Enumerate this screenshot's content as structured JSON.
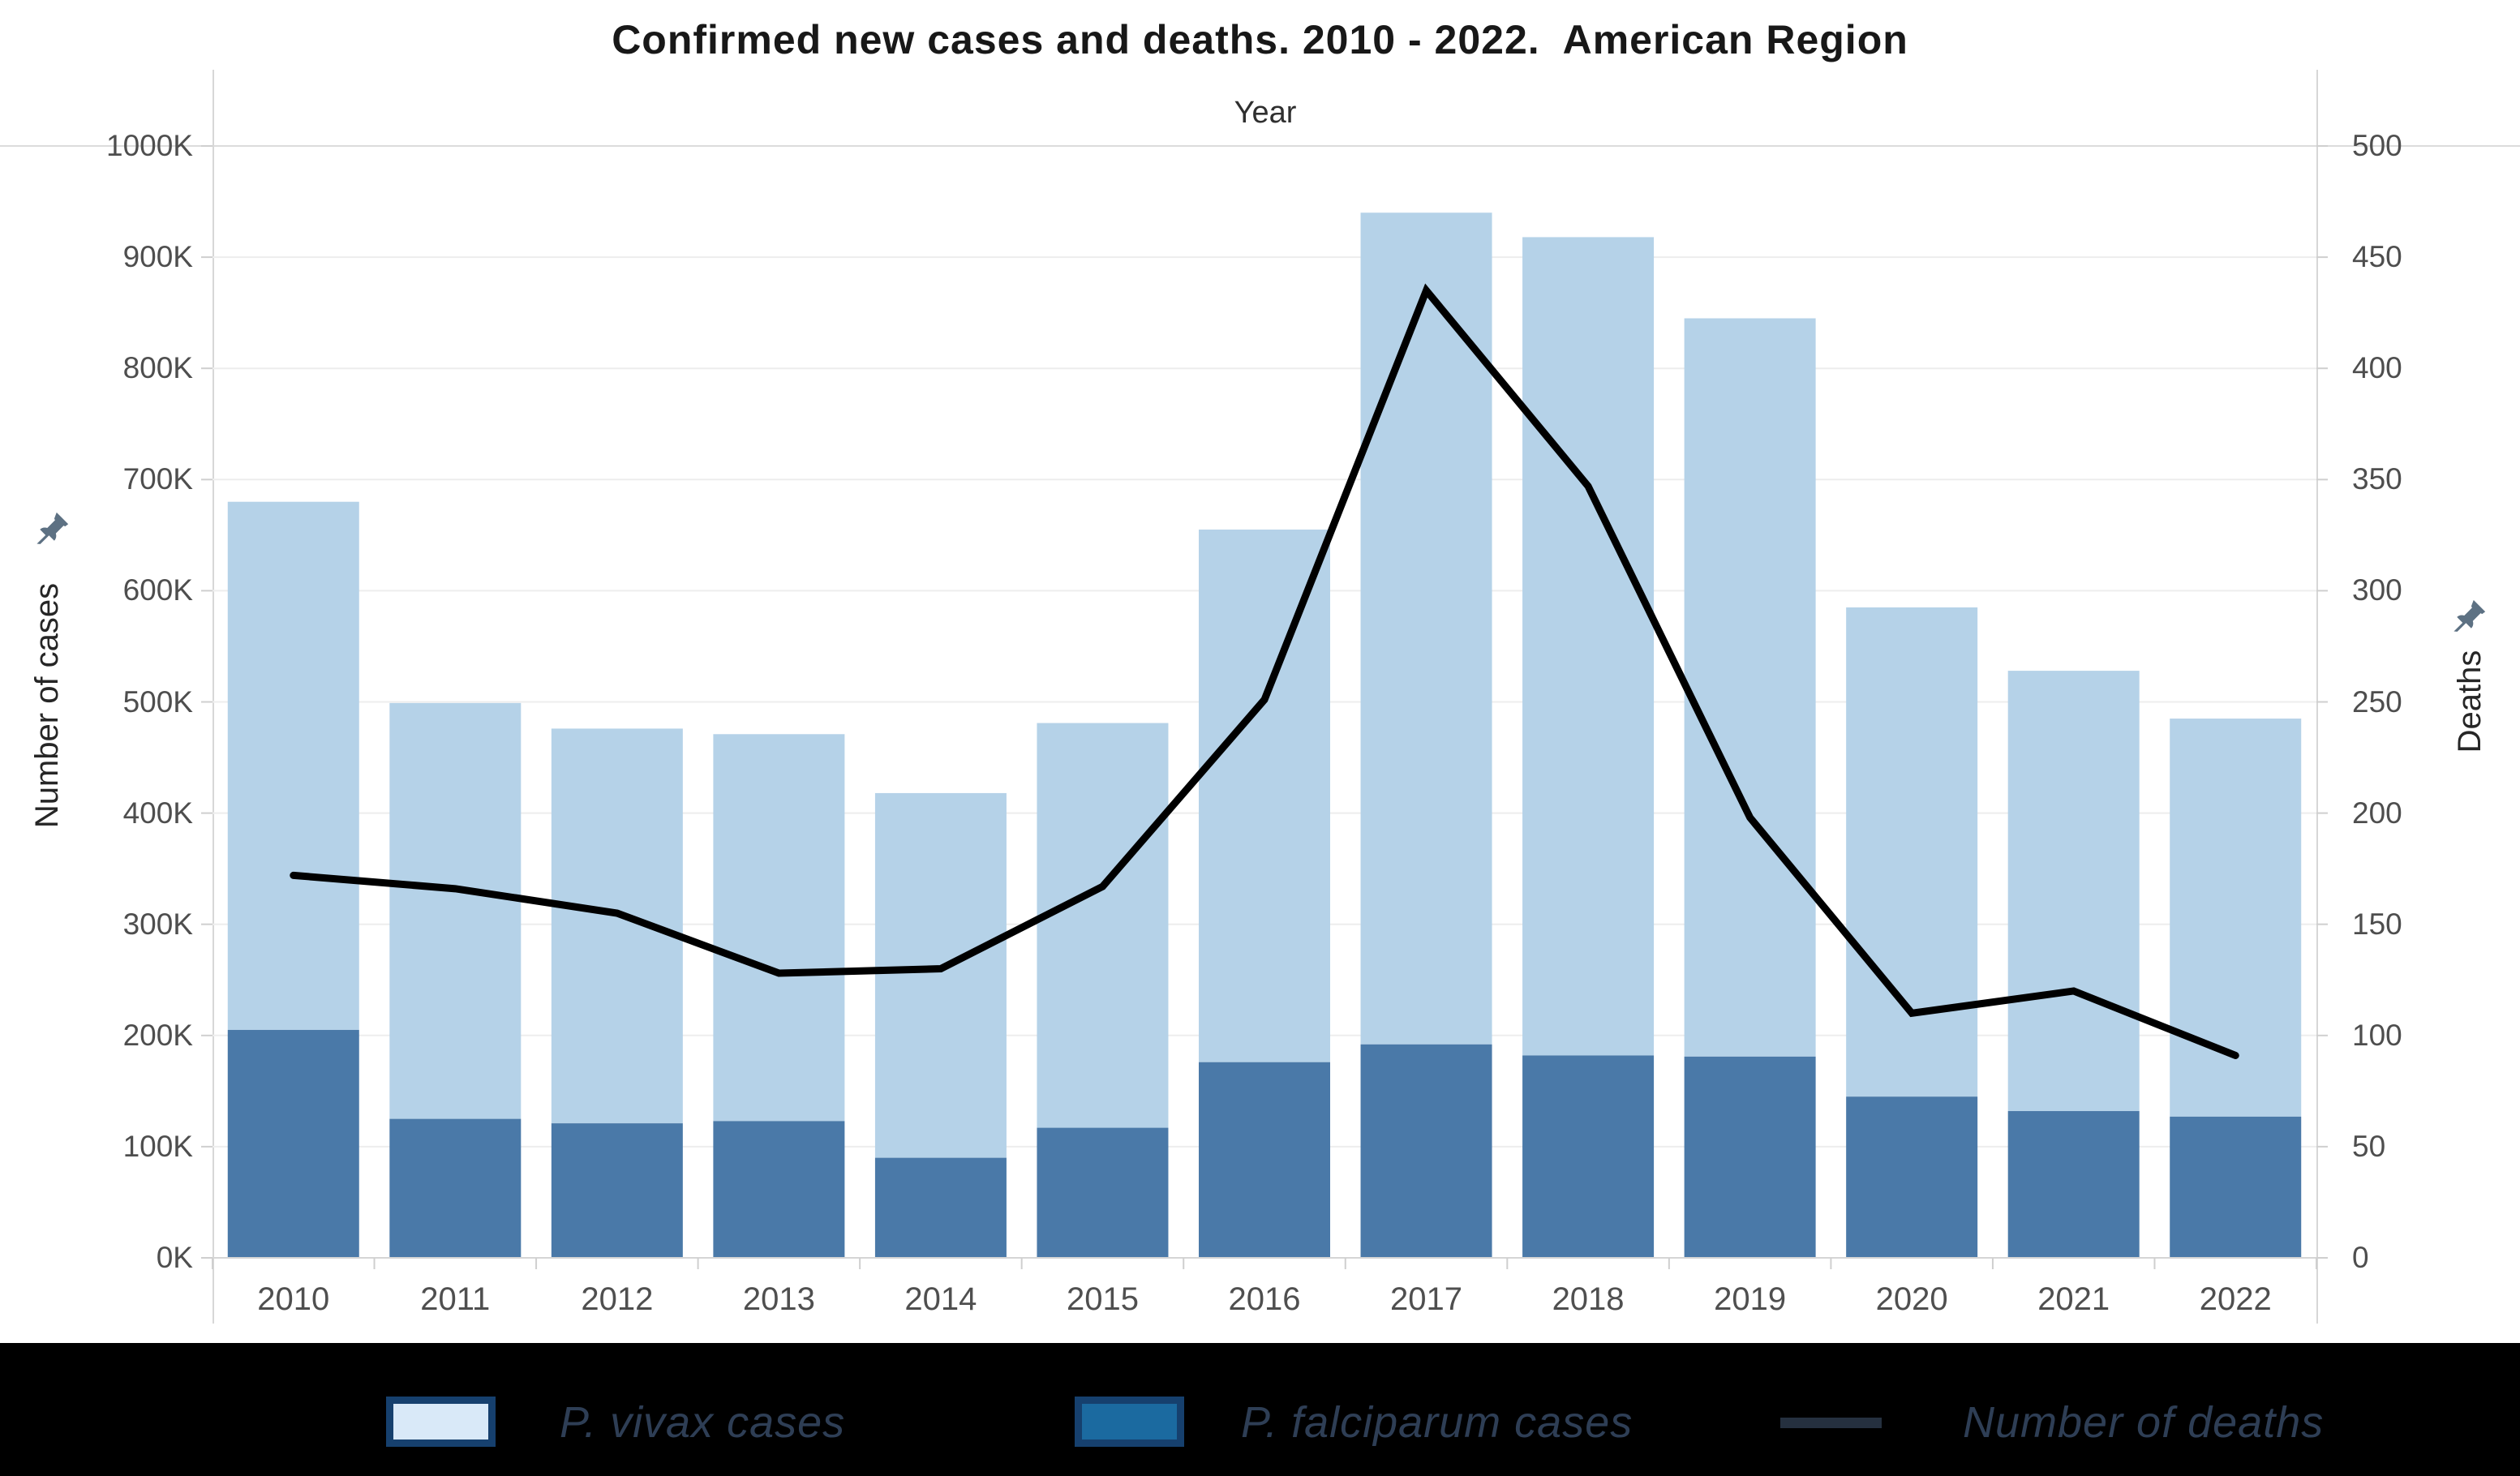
{
  "title": "Confirmed new cases and deaths. 2010 - 2022.  American Region",
  "x_axis_title": "Year",
  "left_axis": {
    "title": "Number of cases",
    "tick_labels": [
      "0K",
      "100K",
      "200K",
      "300K",
      "400K",
      "500K",
      "600K",
      "700K",
      "800K",
      "900K",
      "1000K"
    ],
    "min": 0,
    "max": 1000,
    "tick_step": 100
  },
  "right_axis": {
    "title": "Deaths",
    "tick_labels": [
      "0",
      "50",
      "100",
      "150",
      "200",
      "250",
      "300",
      "350",
      "400",
      "450",
      "500"
    ],
    "min": 0,
    "max": 500,
    "tick_step": 50
  },
  "legend": {
    "items": [
      {
        "label": "P. vivax cases",
        "swatch_type": "bar",
        "swatch_fill": "#d9e9f8",
        "swatch_border": "#16406e"
      },
      {
        "label": "P. falciparum cases",
        "swatch_type": "bar",
        "swatch_fill": "#1b6aa0",
        "swatch_border": "#16406e"
      },
      {
        "label": "Number of deaths",
        "swatch_type": "line",
        "swatch_fill": "#25303f"
      }
    ],
    "text_color": "#2e3e55",
    "background": "#000000"
  },
  "colors": {
    "bar_light": "#b5d2e8",
    "bar_dark": "#4a79a8",
    "line": "#000000",
    "gridline": "#ededed",
    "axis_line": "#d5d5d5",
    "tick_mark": "#cfcfcf",
    "pin_icon": "#5d7183"
  },
  "chart_data": {
    "type": "combo: stacked bar + line",
    "title": "Confirmed new cases and deaths. 2010 - 2022.  American Region",
    "categories": [
      "2010",
      "2011",
      "2012",
      "2013",
      "2014",
      "2015",
      "2016",
      "2017",
      "2018",
      "2019",
      "2020",
      "2021",
      "2022"
    ],
    "series": [
      {
        "name": "P. vivax cases",
        "type": "bar",
        "stack": "cases",
        "axis": "left",
        "unit": "thousand cases",
        "color": "#b5d2e8",
        "values": [
          475,
          374,
          355,
          348,
          328,
          364,
          479,
          748,
          736,
          664,
          440,
          396,
          358
        ]
      },
      {
        "name": "P. falciparum cases",
        "type": "bar",
        "stack": "cases",
        "axis": "left",
        "unit": "thousand cases",
        "color": "#4a79a8",
        "values": [
          205,
          125,
          121,
          123,
          90,
          117,
          176,
          192,
          182,
          181,
          145,
          132,
          127
        ]
      },
      {
        "name": "Number of deaths",
        "type": "line",
        "axis": "right",
        "unit": "deaths",
        "color": "#000000",
        "values": [
          172,
          166,
          155,
          128,
          130,
          167,
          251,
          435,
          347,
          198,
          110,
          120,
          91
        ]
      }
    ],
    "stacked_totals_thousand_cases": [
      680,
      499,
      476,
      471,
      418,
      481,
      655,
      940,
      918,
      845,
      585,
      528,
      485
    ],
    "xlabel": "Year",
    "ylabel_left": "Number of cases",
    "ylabel_right": "Deaths",
    "ylim_left": [
      0,
      1000
    ],
    "ylim_right": [
      0,
      500
    ],
    "grid": "horizontal",
    "legend_position": "bottom"
  }
}
